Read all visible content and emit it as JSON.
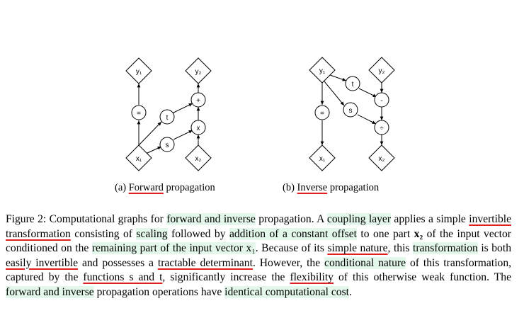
{
  "figure": {
    "forward": {
      "nodes": {
        "y1": "y₁",
        "y2": "y₂",
        "eq": "=",
        "plus": "+",
        "t": "t",
        "times": "x",
        "s": "s",
        "x1": "x₁",
        "x2": "x₂"
      },
      "caption_label": "(a)",
      "caption_word": "Forward",
      "caption_rest": "propagation"
    },
    "inverse": {
      "nodes": {
        "y1": "y₁",
        "y2": "y₂",
        "t": "t",
        "minus": "-",
        "eq": "=",
        "s": "s",
        "div": "÷",
        "x1": "x₁",
        "x2": "x₂"
      },
      "caption_label": "(b)",
      "caption_word": "Inverse",
      "caption_rest": "propagation"
    }
  },
  "caption": {
    "c01": "Figure 2: Computational graphs for ",
    "c02": "forward and inverse",
    "c03": " propagation. A ",
    "c04": "coupling layer",
    "c05": " applies a simple ",
    "c06": "invertible transformation",
    "c07": " consisting of ",
    "c08": "scaling",
    "c09": " followed by ",
    "c10": "addition of a constant offset",
    "c11": " to one part ",
    "c12": "x₂",
    "c13": " of the input vector conditioned on the ",
    "c14": "remaining part of the input vector x₁",
    "c15": ". Because of its ",
    "c16": "simple nature",
    "c17": ", this ",
    "c18": "transformation",
    "c19": " is both ",
    "c20": "easily invertible",
    "c21": " and possesses a ",
    "c22": "tractable determinant",
    "c23": ". However, the ",
    "c24": "conditional nature",
    "c25": " of this transformation, captured by the ",
    "c26": "functions s and t",
    "c27": ", significantly increase the ",
    "c28": "flexibility",
    "c29": " of this otherwise weak function. The ",
    "c30": "forward and inverse",
    "c31": " propagation operations have ",
    "c32": "identical computational cost",
    "c33": "."
  }
}
